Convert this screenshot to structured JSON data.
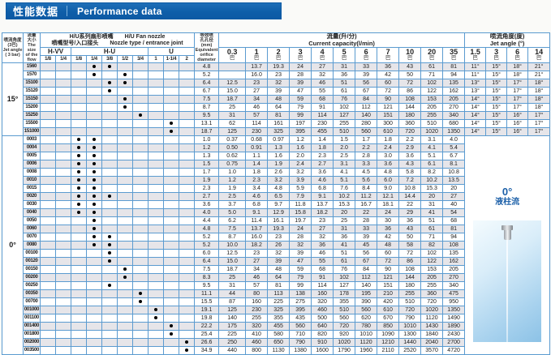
{
  "title": {
    "zh": "性能数据",
    "en": "Performance data"
  },
  "side_note": {
    "angle": "0°",
    "label": "液柱流"
  },
  "table": {
    "header": {
      "angle_col": "喷流角度\n(3巴)\nJet angle\n( 3 bar)",
      "flow_col": "流量\n大小\nThe size\nof the\nflow",
      "joint_group": {
        "line1_zh": "H/U系列扇形喷嘴",
        "line1_en": "H/U  Fan nozzle",
        "line2_zh": "喷嘴型号/入口接头",
        "line2_en": "Nozzle type / entrance joint"
      },
      "joint_subgroups": [
        {
          "label": "H-VV",
          "cols": [
            "1/8",
            "1/4"
          ]
        },
        {
          "label": "H-U",
          "cols": [
            "1/8",
            "1/4",
            "3/8",
            "1/2",
            "3/4"
          ]
        },
        {
          "label": "U",
          "cols": [
            "1",
            "1-1/4",
            "2"
          ]
        }
      ],
      "orifice_col": "等效喷\n孔孔径\n(mm)\nEquivalent\norifice\ndiameter",
      "capacity_group": "流量(升/分)\nCurrent capacity(l/min)",
      "jet_angle_group": "喷流角度(度)\nJet angle (°)",
      "pressure_cols": [
        "0.3",
        "1",
        "2",
        "3",
        "4",
        "5",
        "6",
        "7",
        "10",
        "20",
        "35"
      ],
      "pressure_unit": "巴",
      "jet_angle_cols": [
        "1.5",
        "3",
        "6",
        "14"
      ]
    },
    "groups": [
      {
        "angle": "15°",
        "rows": [
          {
            "label": "1560",
            "dots": [
              3,
              4
            ],
            "diam": "4.8",
            "flows": [
              "",
              "13.7",
              "19.3",
              "24",
              "27",
              "31",
              "33",
              "36",
              "43",
              "61",
              "81"
            ],
            "angles": [
              "11°",
              "15°",
              "18°",
              "21°"
            ]
          },
          {
            "label": "1570",
            "dots": [
              3,
              5
            ],
            "diam": "5.2",
            "flows": [
              "",
              "16.0",
              "23",
              "28",
              "32",
              "36",
              "39",
              "42",
              "50",
              "71",
              "94"
            ],
            "angles": [
              "11°",
              "15°",
              "18°",
              "21°"
            ]
          },
          {
            "label": "15100",
            "dots": [
              4,
              5
            ],
            "diam": "6.4",
            "flows": [
              "12.5",
              "23",
              "32",
              "39",
              "46",
              "51",
              "56",
              "60",
              "72",
              "102",
              "135"
            ],
            "angles": [
              "13°",
              "15°",
              "17°",
              "18°"
            ]
          },
          {
            "label": "15120",
            "dots": [
              4
            ],
            "diam": "6.7",
            "flows": [
              "15.0",
              "27",
              "39",
              "47",
              "55",
              "61",
              "67",
              "72",
              "86",
              "122",
              "162"
            ],
            "angles": [
              "13°",
              "15°",
              "17°",
              "18°"
            ]
          },
          {
            "label": "15150",
            "dots": [
              5
            ],
            "diam": "7.5",
            "flows": [
              "18.7",
              "34",
              "48",
              "59",
              "68",
              "76",
              "84",
              "90",
              "108",
              "153",
              "205"
            ],
            "angles": [
              "14°",
              "15°",
              "17°",
              "18°"
            ]
          },
          {
            "label": "15200",
            "dots": [
              5
            ],
            "diam": "8.7",
            "flows": [
              "25",
              "46",
              "64",
              "79",
              "91",
              "102",
              "112",
              "121",
              "144",
              "205",
              "270"
            ],
            "angles": [
              "14°",
              "15°",
              "17°",
              "18°"
            ]
          },
          {
            "label": "15250",
            "dots": [
              6
            ],
            "diam": "9.5",
            "flows": [
              "31",
              "57",
              "81",
              "99",
              "114",
              "127",
              "140",
              "151",
              "180",
              "255",
              "340"
            ],
            "angles": [
              "14°",
              "15°",
              "16°",
              "17°"
            ]
          },
          {
            "label": "15500",
            "dots": [
              8
            ],
            "diam": "13.1",
            "flows": [
              "62",
              "114",
              "161",
              "197",
              "230",
              "255",
              "280",
              "300",
              "360",
              "510",
              "680"
            ],
            "angles": [
              "14°",
              "15°",
              "16°",
              "17°"
            ]
          },
          {
            "label": "151000",
            "dots": [
              8
            ],
            "diam": "18.7",
            "flows": [
              "125",
              "230",
              "325",
              "395",
              "455",
              "510",
              "560",
              "610",
              "720",
              "1020",
              "1350"
            ],
            "angles": [
              "14°",
              "15°",
              "16°",
              "17°"
            ]
          }
        ]
      },
      {
        "angle": "0°",
        "merged_note": true,
        "rows": [
          {
            "label": "0003",
            "dots": [
              2,
              3
            ],
            "diam": "1.0",
            "flows": [
              "0.37",
              "0.68",
              "0.97",
              "1.2",
              "1.4",
              "1.5",
              "1.7",
              "1.8",
              "2.2",
              "3.1",
              "4.0"
            ]
          },
          {
            "label": "0004",
            "dots": [
              2,
              3
            ],
            "diam": "1.2",
            "flows": [
              "0.50",
              "0.91",
              "1.3",
              "1.6",
              "1.8",
              "2.0",
              "2.2",
              "2.4",
              "2.9",
              "4.1",
              "5.4"
            ]
          },
          {
            "label": "0005",
            "dots": [
              2,
              3
            ],
            "diam": "1.3",
            "flows": [
              "0.62",
              "1.1",
              "1.6",
              "2.0",
              "2.3",
              "2.5",
              "2.8",
              "3.0",
              "3.6",
              "5.1",
              "6.7"
            ]
          },
          {
            "label": "0006",
            "dots": [
              2,
              3
            ],
            "diam": "1.5",
            "flows": [
              "0.75",
              "1.4",
              "1.9",
              "2.4",
              "2.7",
              "3.1",
              "3.3",
              "3.6",
              "4.3",
              "6.1",
              "8.1"
            ]
          },
          {
            "label": "0008",
            "dots": [
              2,
              3
            ],
            "diam": "1.7",
            "flows": [
              "1.0",
              "1.8",
              "2.6",
              "3.2",
              "3.6",
              "4.1",
              "4.5",
              "4.8",
              "5.8",
              "8.2",
              "10.8"
            ]
          },
          {
            "label": "0010",
            "dots": [
              2,
              3
            ],
            "diam": "1.9",
            "flows": [
              "1.2",
              "2.3",
              "3.2",
              "3.9",
              "4.6",
              "5.1",
              "5.6",
              "6.0",
              "7.2",
              "10.2",
              "13.5"
            ]
          },
          {
            "label": "0015",
            "dots": [
              2,
              3
            ],
            "diam": "2.3",
            "flows": [
              "1.9",
              "3.4",
              "4.8",
              "5.9",
              "6.8",
              "7.6",
              "8.4",
              "9.0",
              "10.8",
              "15.3",
              "20"
            ]
          },
          {
            "label": "0020",
            "dots": [
              2,
              3,
              4
            ],
            "diam": "2.7",
            "flows": [
              "2.5",
              "4.6",
              "6.5",
              "7.9",
              "9.1",
              "10.2",
              "11.2",
              "12.1",
              "14.4",
              "20",
              "27"
            ]
          },
          {
            "label": "0030",
            "dots": [
              2,
              3
            ],
            "diam": "3.6",
            "flows": [
              "3.7",
              "6.8",
              "9.7",
              "11.8",
              "13.7",
              "15.3",
              "16.7",
              "18.1",
              "22",
              "31",
              "40"
            ]
          },
          {
            "label": "0040",
            "dots": [
              2,
              3
            ],
            "diam": "4.0",
            "flows": [
              "5.0",
              "9.1",
              "12.9",
              "15.8",
              "18.2",
              "20",
              "22",
              "24",
              "29",
              "41",
              "54"
            ]
          },
          {
            "label": "0050",
            "dots": [
              3
            ],
            "diam": "4.4",
            "flows": [
              "6.2",
              "11.4",
              "16.1",
              "19.7",
              "23",
              "25",
              "28",
              "30",
              "36",
              "51",
              "68"
            ]
          },
          {
            "label": "0060",
            "dots": [
              3
            ],
            "diam": "4.8",
            "flows": [
              "7.5",
              "13.7",
              "19.3",
              "24",
              "27",
              "31",
              "33",
              "36",
              "43",
              "61",
              "81"
            ]
          },
          {
            "label": "0070",
            "dots": [
              3,
              4
            ],
            "diam": "5.2",
            "flows": [
              "8.7",
              "16.0",
              "23",
              "28",
              "32",
              "36",
              "39",
              "42",
              "50",
              "71",
              "94"
            ]
          },
          {
            "label": "0080",
            "dots": [
              3,
              4
            ],
            "diam": "5.2",
            "flows": [
              "10.0",
              "18.2",
              "26",
              "32",
              "36",
              "41",
              "45",
              "48",
              "58",
              "82",
              "108"
            ]
          },
          {
            "label": "00100",
            "dots": [
              4
            ],
            "diam": "6.0",
            "flows": [
              "12.5",
              "23",
              "32",
              "39",
              "46",
              "51",
              "56",
              "60",
              "72",
              "102",
              "135"
            ]
          },
          {
            "label": "00120",
            "dots": [
              4
            ],
            "diam": "6.4",
            "flows": [
              "15.0",
              "27",
              "39",
              "47",
              "55",
              "61",
              "67",
              "72",
              "86",
              "122",
              "162"
            ]
          },
          {
            "label": "00150",
            "dots": [
              5
            ],
            "diam": "7.5",
            "flows": [
              "18.7",
              "34",
              "48",
              "59",
              "68",
              "76",
              "84",
              "90",
              "108",
              "153",
              "205"
            ]
          },
          {
            "label": "00200",
            "dots": [
              5
            ],
            "diam": "8.3",
            "flows": [
              "25",
              "46",
              "64",
              "79",
              "91",
              "102",
              "112",
              "121",
              "144",
              "205",
              "270"
            ]
          },
          {
            "label": "00250",
            "dots": [
              4
            ],
            "diam": "9.5",
            "flows": [
              "31",
              "57",
              "81",
              "99",
              "114",
              "127",
              "140",
              "151",
              "180",
              "255",
              "340"
            ]
          },
          {
            "label": "00350",
            "dots": [
              6
            ],
            "diam": "11.1",
            "flows": [
              "44",
              "80",
              "113",
              "138",
              "160",
              "178",
              "195",
              "210",
              "255",
              "360",
              "475"
            ]
          },
          {
            "label": "00700",
            "dots": [
              6
            ],
            "diam": "15.5",
            "flows": [
              "87",
              "160",
              "225",
              "275",
              "320",
              "355",
              "390",
              "420",
              "510",
              "720",
              "950"
            ]
          },
          {
            "label": "001000",
            "dots": [
              7
            ],
            "diam": "19.1",
            "flows": [
              "125",
              "230",
              "325",
              "395",
              "460",
              "510",
              "560",
              "610",
              "720",
              "1020",
              "1350"
            ]
          },
          {
            "label": "001100",
            "dots": [
              7
            ],
            "diam": "19.8",
            "flows": [
              "140",
              "255",
              "355",
              "435",
              "500",
              "560",
              "620",
              "670",
              "790",
              "1120",
              "1490"
            ]
          },
          {
            "label": "001400",
            "dots": [
              8
            ],
            "diam": "22.2",
            "flows": [
              "175",
              "320",
              "455",
              "560",
              "640",
              "720",
              "780",
              "850",
              "1010",
              "1430",
              "1890"
            ]
          },
          {
            "label": "001800",
            "dots": [
              8
            ],
            "diam": "25.4",
            "flows": [
              "225",
              "410",
              "580",
              "710",
              "820",
              "920",
              "1010",
              "1090",
              "1300",
              "1840",
              "2430"
            ]
          },
          {
            "label": "002000",
            "dots": [
              9
            ],
            "diam": "26.6",
            "flows": [
              "250",
              "460",
              "650",
              "790",
              "910",
              "1020",
              "1120",
              "1210",
              "1440",
              "2040",
              "2700"
            ]
          },
          {
            "label": "003500",
            "dots": [
              9
            ],
            "diam": "34.9",
            "flows": [
              "440",
              "800",
              "1130",
              "1380",
              "1600",
              "1790",
              "1960",
              "2110",
              "2520",
              "3570",
              "4720"
            ]
          }
        ]
      }
    ]
  }
}
